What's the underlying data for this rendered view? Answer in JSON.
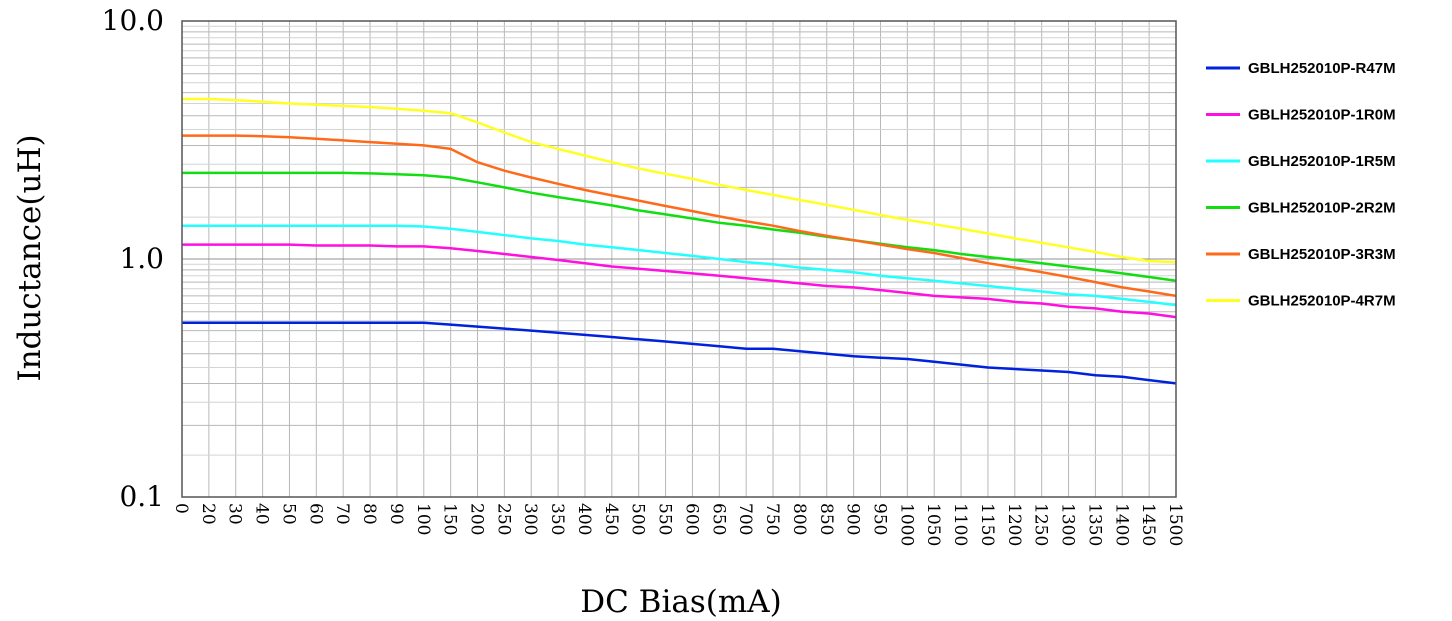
{
  "chart_data": {
    "type": "line",
    "xlabel": "DC Bias(mA)",
    "ylabel": "Inductance(uH)",
    "x_scale": "categorical",
    "y_scale": "log",
    "ylim": [
      0.1,
      10.0
    ],
    "y_ticks": [
      "10.0",
      "1.0",
      "0.1"
    ],
    "grid": true,
    "legend_position": "right",
    "categories": [
      "0",
      "20",
      "30",
      "40",
      "50",
      "60",
      "70",
      "80",
      "90",
      "100",
      "150",
      "200",
      "250",
      "300",
      "350",
      "400",
      "450",
      "500",
      "550",
      "600",
      "650",
      "700",
      "750",
      "800",
      "850",
      "900",
      "950",
      "1000",
      "1050",
      "1100",
      "1150",
      "1200",
      "1250",
      "1300",
      "1350",
      "1400",
      "1450",
      "1500"
    ],
    "series": [
      {
        "name": "GBLH252010P-R47M",
        "color": "#0022dd",
        "values": [
          0.54,
          0.54,
          0.54,
          0.54,
          0.54,
          0.54,
          0.54,
          0.54,
          0.54,
          0.54,
          0.53,
          0.52,
          0.51,
          0.5,
          0.49,
          0.48,
          0.47,
          0.46,
          0.45,
          0.44,
          0.43,
          0.42,
          0.42,
          0.41,
          0.4,
          0.39,
          0.385,
          0.38,
          0.37,
          0.36,
          0.35,
          0.345,
          0.34,
          0.335,
          0.325,
          0.32,
          0.31,
          0.3
        ]
      },
      {
        "name": "GBLH252010P-1R0M",
        "color": "#ff10e0",
        "values": [
          1.15,
          1.15,
          1.15,
          1.15,
          1.15,
          1.14,
          1.14,
          1.14,
          1.13,
          1.13,
          1.11,
          1.08,
          1.05,
          1.02,
          0.99,
          0.96,
          0.93,
          0.91,
          0.89,
          0.87,
          0.85,
          0.83,
          0.81,
          0.79,
          0.77,
          0.76,
          0.74,
          0.72,
          0.7,
          0.69,
          0.68,
          0.66,
          0.65,
          0.63,
          0.62,
          0.6,
          0.59,
          0.57
        ]
      },
      {
        "name": "GBLH252010P-1R5M",
        "color": "#22ffff",
        "values": [
          1.38,
          1.38,
          1.38,
          1.38,
          1.38,
          1.38,
          1.38,
          1.38,
          1.38,
          1.37,
          1.34,
          1.3,
          1.26,
          1.22,
          1.19,
          1.15,
          1.12,
          1.09,
          1.06,
          1.03,
          1.0,
          0.97,
          0.95,
          0.92,
          0.9,
          0.88,
          0.85,
          0.83,
          0.81,
          0.79,
          0.77,
          0.75,
          0.73,
          0.71,
          0.7,
          0.68,
          0.66,
          0.64
        ]
      },
      {
        "name": "GBLH252010P-2R2M",
        "color": "#11dd11",
        "values": [
          2.3,
          2.3,
          2.3,
          2.3,
          2.3,
          2.3,
          2.3,
          2.29,
          2.27,
          2.25,
          2.2,
          2.1,
          2.0,
          1.9,
          1.82,
          1.75,
          1.68,
          1.6,
          1.54,
          1.48,
          1.42,
          1.38,
          1.33,
          1.29,
          1.24,
          1.2,
          1.16,
          1.12,
          1.09,
          1.05,
          1.02,
          0.99,
          0.96,
          0.93,
          0.9,
          0.87,
          0.84,
          0.81
        ]
      },
      {
        "name": "GBLH252010P-3R3M",
        "color": "#ff6a1a",
        "values": [
          3.3,
          3.3,
          3.3,
          3.28,
          3.25,
          3.2,
          3.15,
          3.1,
          3.05,
          3.0,
          2.9,
          2.55,
          2.35,
          2.2,
          2.07,
          1.95,
          1.85,
          1.76,
          1.67,
          1.59,
          1.51,
          1.44,
          1.38,
          1.31,
          1.25,
          1.2,
          1.15,
          1.1,
          1.06,
          1.01,
          0.96,
          0.92,
          0.88,
          0.84,
          0.8,
          0.76,
          0.73,
          0.7
        ]
      },
      {
        "name": "GBLH252010P-4R7M",
        "color": "#ffff22",
        "values": [
          4.7,
          4.7,
          4.65,
          4.58,
          4.5,
          4.45,
          4.4,
          4.35,
          4.28,
          4.2,
          4.1,
          3.75,
          3.4,
          3.1,
          2.9,
          2.72,
          2.55,
          2.4,
          2.28,
          2.17,
          2.05,
          1.95,
          1.86,
          1.77,
          1.69,
          1.61,
          1.53,
          1.46,
          1.4,
          1.34,
          1.28,
          1.22,
          1.17,
          1.12,
          1.07,
          1.02,
          0.98,
          0.97
        ]
      }
    ]
  }
}
